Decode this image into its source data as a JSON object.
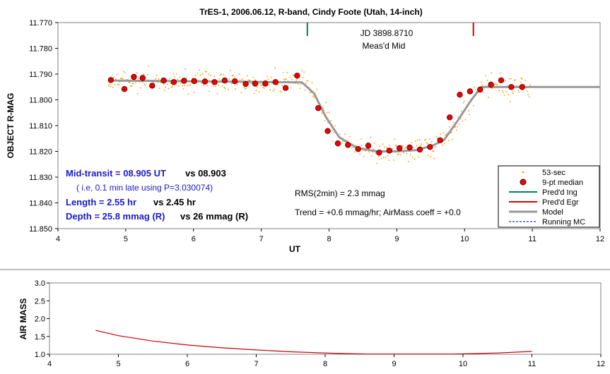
{
  "chart_data": [
    {
      "type": "scatter",
      "title": "TrES-1, 2006.06.12, R-band, Cindy Foote (Utah, 14-inch)",
      "xlabel": "UT",
      "ylabel": "OBJECT R-MAG",
      "xlim": [
        4,
        12
      ],
      "ylim": [
        11.77,
        11.85
      ],
      "y_inverted": true,
      "xticks": [
        "4",
        "5",
        "6",
        "7",
        "8",
        "9",
        "10",
        "11",
        "12"
      ],
      "yticks": [
        "11.770",
        "11.780",
        "11.790",
        "11.800",
        "11.810",
        "11.820",
        "11.830",
        "11.840",
        "11.850"
      ],
      "legend_position": "bottom-right",
      "legend": [
        "53-sec",
        "9-pt median",
        "Pred'd Ing",
        "Pred'd Egr",
        "Model",
        "Running MC"
      ],
      "colors": {
        "raw": "#ff9900",
        "median_fill": "#ee0000",
        "median_edge": "#550000",
        "ingress": "#008060",
        "egress": "#dd0000",
        "model": "#999999",
        "running_mc": "#000080"
      },
      "predicted_ingress_ut": 7.68,
      "predicted_egress_ut": 10.13,
      "series": [
        {
          "name": "9-pt median",
          "x": [
            4.78,
            4.98,
            5.12,
            5.25,
            5.39,
            5.56,
            5.71,
            5.86,
            6.01,
            6.17,
            6.31,
            6.46,
            6.61,
            6.77,
            6.91,
            7.06,
            7.21,
            7.36,
            7.53,
            7.84,
            7.98,
            8.13,
            8.28,
            8.43,
            8.58,
            8.74,
            8.89,
            9.04,
            9.19,
            9.34,
            9.49,
            9.64,
            9.78,
            9.93,
            10.08,
            10.23,
            10.39,
            10.54,
            10.69,
            10.85
          ],
          "y": [
            11.7923,
            11.7958,
            11.7911,
            11.7915,
            11.7945,
            11.7925,
            11.7931,
            11.7926,
            11.7927,
            11.7929,
            11.7931,
            11.7925,
            11.7928,
            11.7938,
            11.7937,
            11.7937,
            11.7931,
            11.7954,
            11.7906,
            11.8032,
            11.8121,
            11.8169,
            11.8175,
            11.8191,
            11.8178,
            11.8205,
            11.8197,
            11.8188,
            11.8185,
            11.8193,
            11.8183,
            11.8157,
            11.8068,
            11.798,
            11.7967,
            11.796,
            11.7941,
            11.7924,
            11.795,
            11.795
          ]
        },
        {
          "name": "Model",
          "x": [
            4.75,
            7.6,
            7.78,
            7.95,
            8.15,
            8.4,
            8.7,
            9.0,
            9.3,
            9.55,
            9.7,
            9.9,
            10.1,
            10.25,
            11.1,
            12.0
          ],
          "y": [
            11.7925,
            11.7932,
            11.7975,
            11.8065,
            11.8145,
            11.8185,
            11.82,
            11.82,
            11.8195,
            11.8175,
            11.8155,
            11.808,
            11.8,
            11.795,
            11.795,
            11.795
          ]
        }
      ],
      "annotations": {
        "jd": "JD 3898.8710",
        "meas_mid": "Meas'd Mid",
        "mid_transit": "Mid-transit = 08.905 UT",
        "mid_transit_vs": "vs 08.903",
        "late_note": "( i.e, 0.1 min late using P=3.030074)",
        "length": "Length = 2.55 hr",
        "length_vs": "vs 2.45 hr",
        "depth": "Depth = 25.8 mmag (R)",
        "depth_vs": "vs 26 mmag (R)",
        "rms": "RMS(2min) = 2.3 mmag",
        "trend": "Trend = +0.6 mmag/hr; AirMass coeff = +0.0"
      }
    },
    {
      "type": "line",
      "xlabel": "",
      "ylabel": "AIR MASS",
      "xlim": [
        4,
        12
      ],
      "ylim": [
        1.0,
        3.0
      ],
      "xticks": [
        "4",
        "5",
        "6",
        "7",
        "8",
        "9",
        "10",
        "11",
        "12"
      ],
      "yticks": [
        "1.0",
        "1.5",
        "2.0",
        "2.5",
        "3.0"
      ],
      "colors": {
        "line": "#cc0000"
      },
      "series": [
        {
          "name": "",
          "x": [
            4.67,
            5.0,
            5.5,
            6.0,
            6.5,
            7.0,
            7.5,
            8.0,
            8.25,
            8.5,
            8.6,
            9.85,
            10.0,
            10.5,
            11.0
          ],
          "y": [
            1.67,
            1.52,
            1.37,
            1.26,
            1.18,
            1.12,
            1.07,
            1.035,
            1.02,
            1.01,
            1.005,
            1.005,
            1.01,
            1.035,
            1.08
          ]
        }
      ]
    }
  ]
}
